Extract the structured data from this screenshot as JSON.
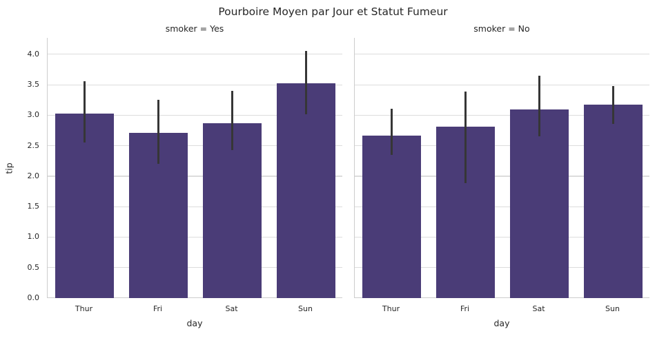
{
  "title": "Pourboire Moyen par Jour et Statut Fumeur",
  "colors": {
    "bar": "#4a3c77",
    "error_bar": "#363636",
    "grid": "#dcdcdc",
    "spine": "#cccccc",
    "text": "#262626"
  },
  "chart_data": {
    "type": "bar",
    "categories": [
      "Thur",
      "Fri",
      "Sat",
      "Sun"
    ],
    "xlabel": "day",
    "ylabel": "tip",
    "ylim": [
      0,
      4.27
    ],
    "yticks": [
      0.0,
      0.5,
      1.0,
      1.5,
      2.0,
      2.5,
      3.0,
      3.5,
      4.0
    ],
    "grid": true,
    "legend": "none",
    "facets": [
      {
        "label": "smoker = Yes",
        "series": "tip mean",
        "values": [
          3.03,
          2.71,
          2.87,
          3.52
        ],
        "ci_low": [
          2.55,
          2.2,
          2.43,
          3.02
        ],
        "ci_high": [
          3.56,
          3.25,
          3.4,
          4.06
        ]
      },
      {
        "label": "smoker = No",
        "series": "tip mean",
        "values": [
          2.67,
          2.81,
          3.1,
          3.17
        ],
        "ci_low": [
          2.35,
          1.89,
          2.66,
          2.86
        ],
        "ci_high": [
          3.11,
          3.39,
          3.65,
          3.48
        ]
      }
    ]
  }
}
